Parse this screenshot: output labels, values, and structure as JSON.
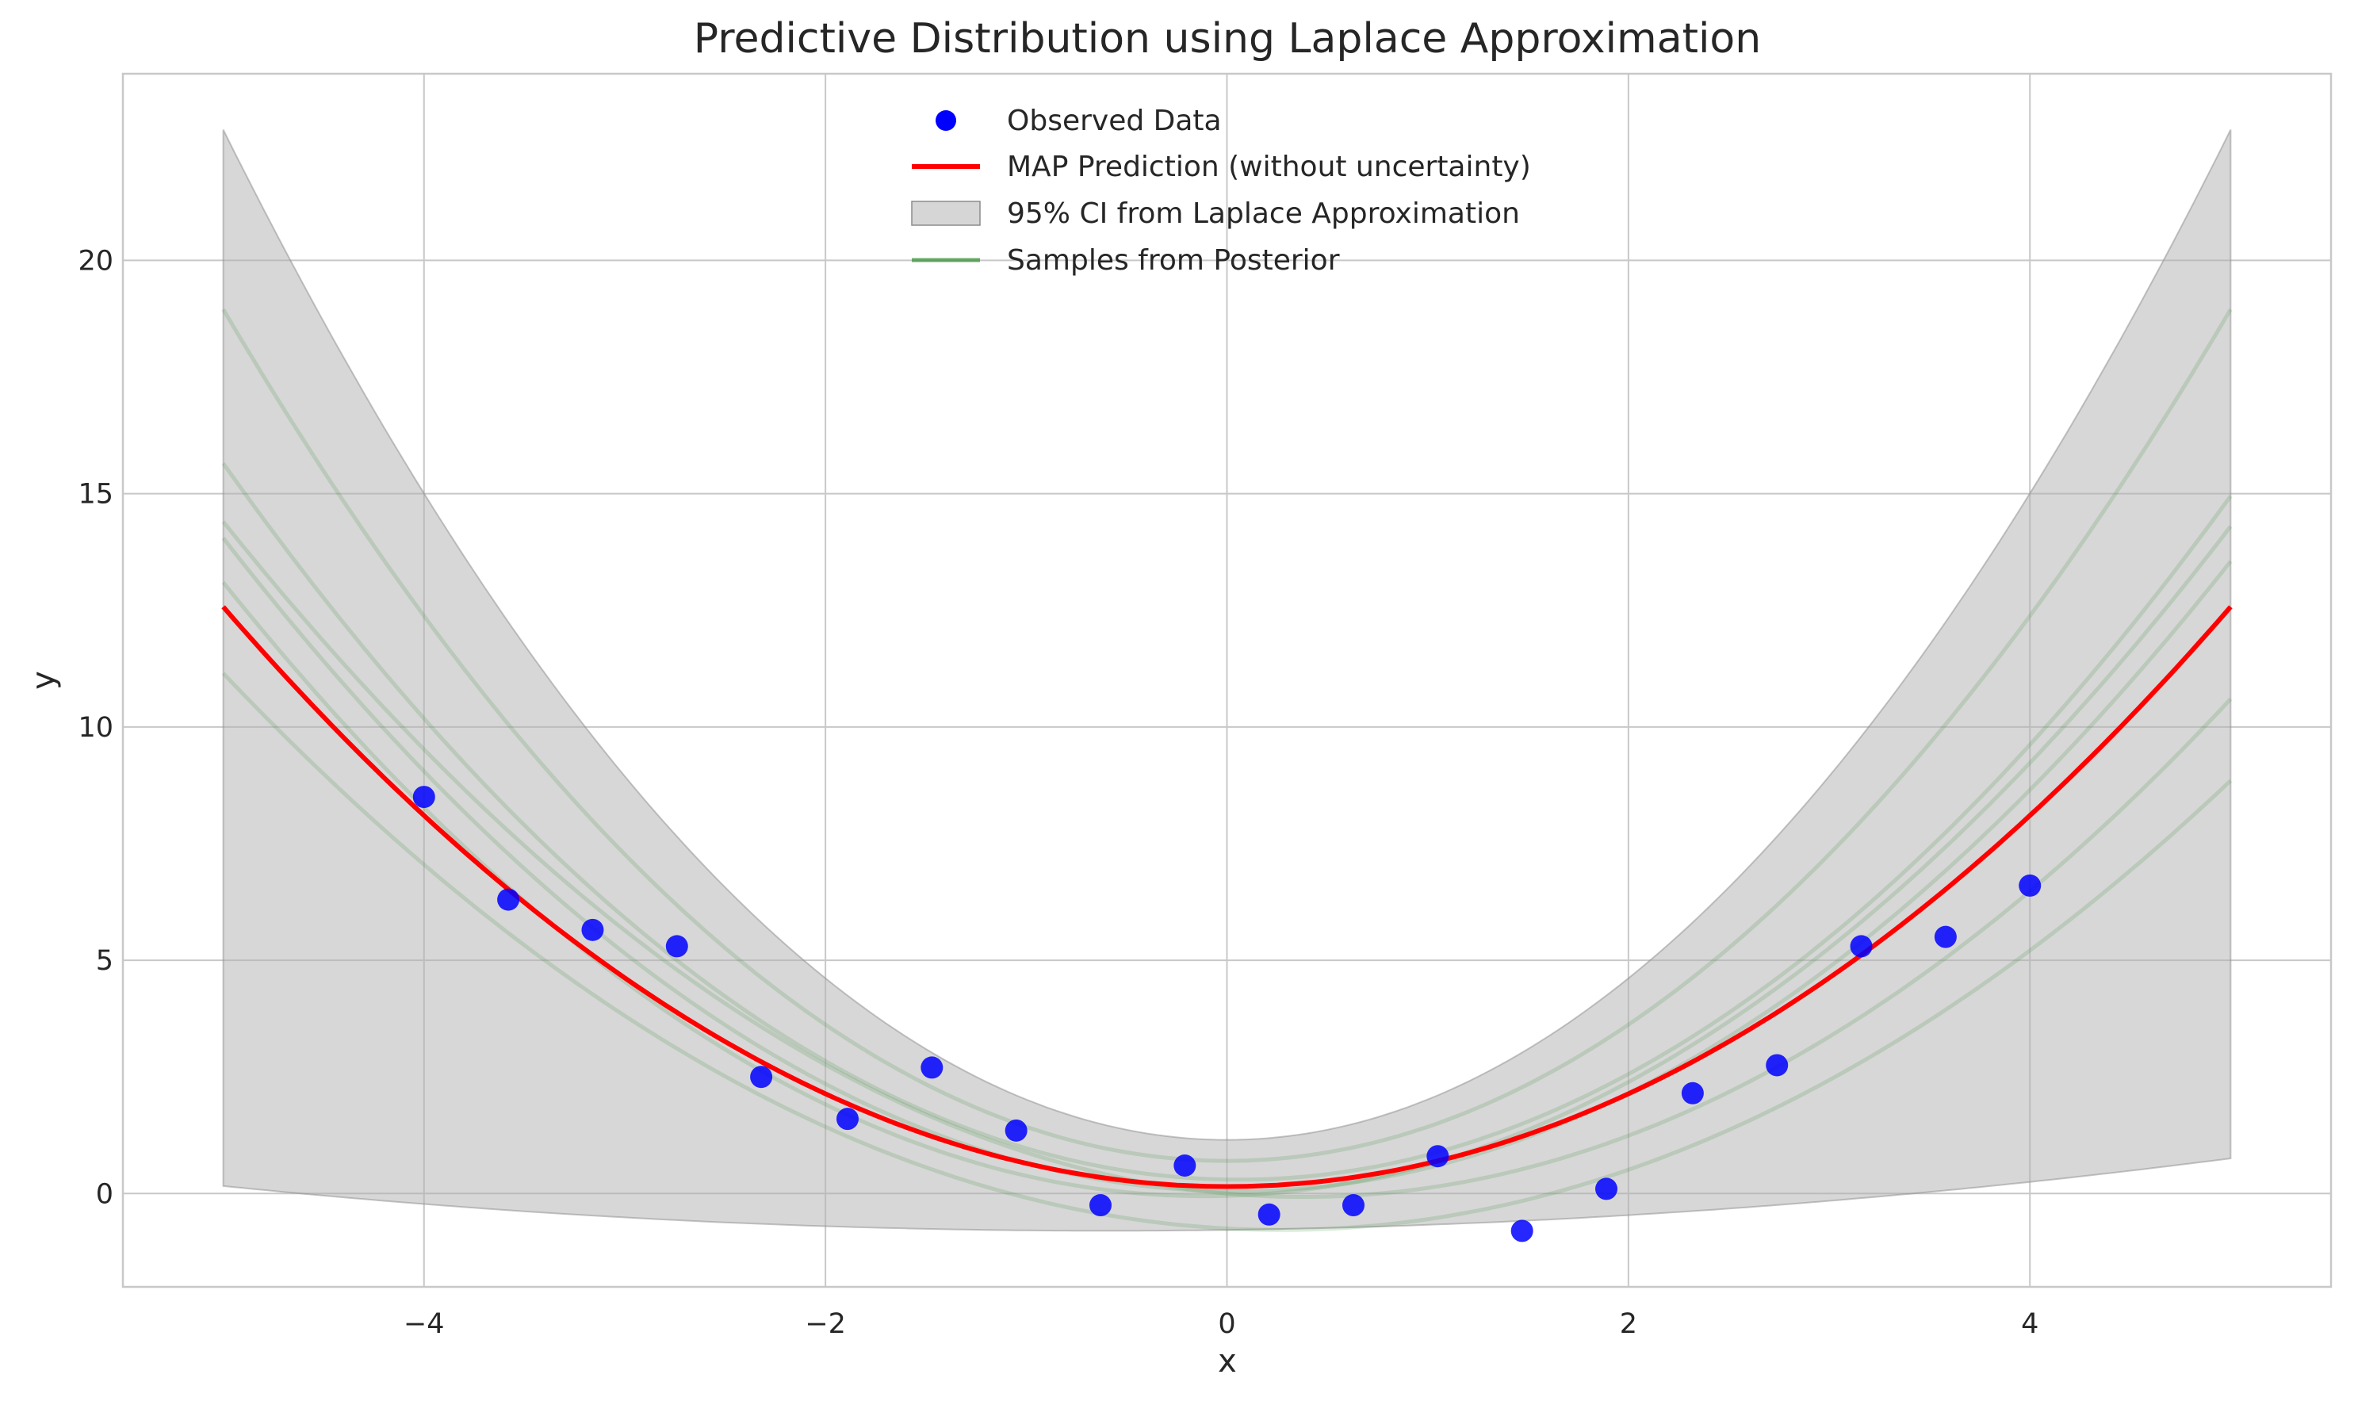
{
  "chart_data": {
    "type": "line",
    "title": "Predictive Distribution using Laplace Approximation",
    "xlabel": "x",
    "ylabel": "y",
    "xlim": [
      -5.5,
      5.5
    ],
    "ylim": [
      -2,
      24
    ],
    "grid": true,
    "x_ticks": [
      -4,
      -2,
      0,
      2,
      4
    ],
    "x_tick_labels": [
      "−4",
      "−2",
      "0",
      "2",
      "4"
    ],
    "y_ticks": [
      0,
      5,
      10,
      15,
      20
    ],
    "y_tick_labels": [
      "0",
      "5",
      "10",
      "15",
      "20"
    ],
    "legend_position": "upper center",
    "legend": [
      {
        "label": "Observed Data",
        "kind": "marker"
      },
      {
        "label": "MAP Prediction (without uncertainty)",
        "kind": "line"
      },
      {
        "label": "95% CI from Laplace Approximation",
        "kind": "patch"
      },
      {
        "label": "Samples from Posterior",
        "kind": "line"
      }
    ],
    "colors": {
      "data": "#0000ff",
      "map": "#ff0000",
      "ci_fill": "#b0b0b0",
      "ci_edge": "#8c8c8c",
      "samples": "#2e8b2e",
      "grid": "#c8c8c8",
      "spine": "#c8c8c8"
    },
    "observed_data": {
      "x": [
        -4.0,
        -3.58,
        -3.16,
        -2.74,
        -2.32,
        -1.89,
        -1.47,
        -1.05,
        -0.63,
        -0.21,
        0.21,
        0.63,
        1.05,
        1.47,
        1.89,
        2.32,
        2.74,
        3.16,
        3.58,
        4.0
      ],
      "y": [
        8.5,
        6.3,
        5.65,
        5.3,
        2.5,
        1.6,
        2.7,
        1.35,
        -0.25,
        0.6,
        -0.45,
        -0.25,
        0.8,
        -0.8,
        0.1,
        2.15,
        2.75,
        5.3,
        5.5,
        6.6
      ]
    },
    "map_prediction": {
      "model": "a*x^2 + b*x + c",
      "a": 0.497,
      "b": 0.0,
      "c": 0.15,
      "x_range": [
        -5,
        5
      ]
    },
    "ci_95": {
      "x_range": [
        -5,
        5
      ],
      "upper": {
        "model": "a*x^2 + c",
        "a": 0.866,
        "c": 1.15
      },
      "lower": {
        "model": "a*x^2 + b*x + c",
        "a": 0.0495,
        "b": 0.0592,
        "c": -0.78
      }
    },
    "posterior_samples": [
      {
        "a": 0.73,
        "b": 0.0,
        "c": 0.7
      },
      {
        "a": 0.6,
        "b": -0.07,
        "c": 0.3
      },
      {
        "a": 0.55,
        "b": -0.05,
        "c": 0.05
      },
      {
        "a": 0.5,
        "b": -0.38,
        "c": 0.0
      },
      {
        "a": 0.43,
        "b": -0.23,
        "c": -0.75
      },
      {
        "a": 0.55,
        "b": 0.12,
        "c": -0.05
      }
    ]
  }
}
